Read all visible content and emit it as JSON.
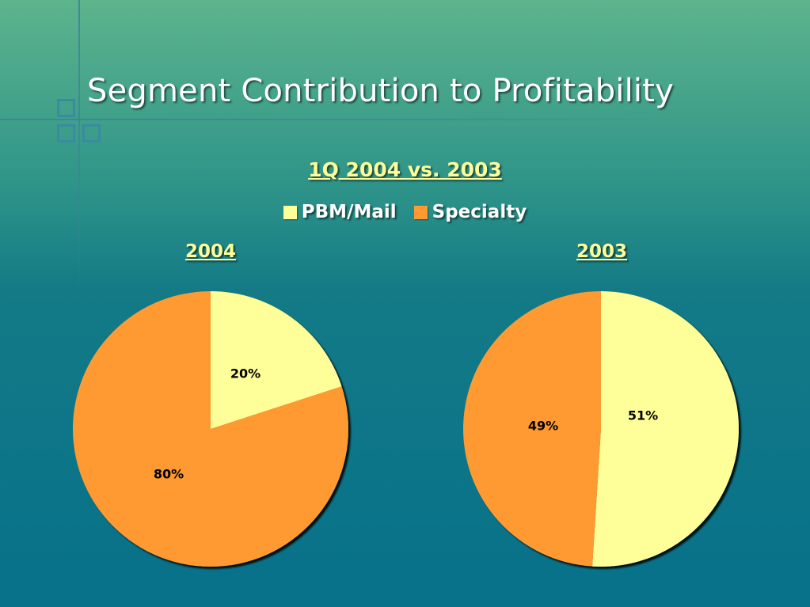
{
  "slide": {
    "title": "Segment Contribution to Profitability"
  },
  "colors": {
    "pbm_mail": "#ffff99",
    "specialty": "#ff9933"
  },
  "chart_data": {
    "type": "pie",
    "title": "1Q 2004 vs. 2003",
    "legend_placement": "top",
    "legend": [
      "PBM/Mail",
      "Specialty"
    ],
    "pies": [
      {
        "title": "2004",
        "slices": [
          {
            "name": "PBM/Mail",
            "value": 20,
            "label": "20%",
            "color": "#ffff99"
          },
          {
            "name": "Specialty",
            "value": 80,
            "label": "80%",
            "color": "#ff9933"
          }
        ]
      },
      {
        "title": "2003",
        "slices": [
          {
            "name": "PBM/Mail",
            "value": 51,
            "label": "51%",
            "color": "#ffff99"
          },
          {
            "name": "Specialty",
            "value": 49,
            "label": "49%",
            "color": "#ff9933"
          }
        ]
      }
    ]
  }
}
